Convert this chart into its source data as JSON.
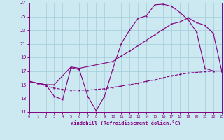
{
  "xlabel": "Windchill (Refroidissement éolien,°C)",
  "bg_color": "#cce8f0",
  "line_color": "#800080",
  "xlim": [
    0,
    23
  ],
  "ylim": [
    11,
    27
  ],
  "xticks": [
    0,
    1,
    2,
    3,
    4,
    5,
    6,
    7,
    8,
    9,
    10,
    11,
    12,
    13,
    14,
    15,
    16,
    17,
    18,
    19,
    20,
    21,
    22,
    23
  ],
  "yticks": [
    11,
    13,
    15,
    17,
    19,
    21,
    23,
    25,
    27
  ],
  "grid_color": "#a0ccd8",
  "curve1_x": [
    0,
    1,
    2,
    3,
    4,
    5,
    6,
    7,
    8,
    9,
    10,
    11,
    12,
    13,
    14,
    15,
    16,
    17,
    18,
    19,
    20,
    21,
    22,
    23
  ],
  "curve1_y": [
    15.5,
    15.2,
    15.0,
    13.3,
    12.8,
    17.5,
    17.2,
    13.3,
    11.2,
    13.3,
    17.3,
    21.0,
    23.0,
    24.7,
    25.1,
    26.7,
    26.8,
    26.5,
    25.6,
    24.5,
    22.7,
    17.4,
    17.0,
    17.0
  ],
  "curve2_x": [
    0,
    1,
    2,
    3,
    5,
    6,
    10,
    11,
    12,
    13,
    14,
    15,
    16,
    17,
    18,
    19,
    20,
    21,
    22,
    23
  ],
  "curve2_y": [
    15.5,
    15.2,
    15.0,
    15.0,
    17.6,
    17.4,
    18.4,
    19.2,
    19.9,
    20.7,
    21.5,
    22.3,
    23.1,
    23.9,
    24.2,
    24.8,
    24.1,
    23.7,
    22.5,
    17.0
  ],
  "curve3_x": [
    0,
    1,
    2,
    3,
    4,
    5,
    6,
    7,
    8,
    9,
    10,
    11,
    12,
    13,
    14,
    15,
    16,
    17,
    18,
    19,
    20,
    21,
    22,
    23
  ],
  "curve3_y": [
    15.5,
    15.2,
    14.8,
    14.5,
    14.3,
    14.2,
    14.2,
    14.2,
    14.3,
    14.4,
    14.6,
    14.8,
    15.0,
    15.2,
    15.5,
    15.7,
    16.0,
    16.3,
    16.5,
    16.7,
    16.8,
    16.9,
    17.0,
    17.0
  ]
}
